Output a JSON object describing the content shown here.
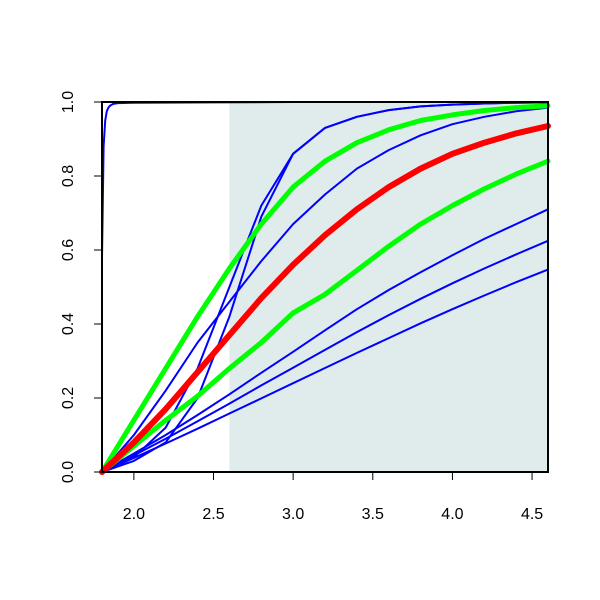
{
  "chart_data": {
    "type": "line",
    "title": "",
    "xlabel": "",
    "ylabel": "",
    "xlim": [
      1.8,
      4.6
    ],
    "ylim": [
      0,
      1
    ],
    "x_ticks": [
      {
        "value": 2.0,
        "label": "2.0"
      },
      {
        "value": 2.5,
        "label": "2.5"
      },
      {
        "value": 3.0,
        "label": "3.0"
      },
      {
        "value": 3.5,
        "label": "3.5"
      },
      {
        "value": 4.0,
        "label": "4.0"
      },
      {
        "value": 4.5,
        "label": "4.5"
      }
    ],
    "y_ticks": [
      {
        "value": 0.0,
        "label": "0.0"
      },
      {
        "value": 0.2,
        "label": "0.2"
      },
      {
        "value": 0.4,
        "label": "0.4"
      },
      {
        "value": 0.6,
        "label": "0.6"
      },
      {
        "value": 0.8,
        "label": "0.8"
      },
      {
        "value": 1.0,
        "label": "1.0"
      }
    ],
    "grid": false,
    "legend": "none",
    "shaded_region": {
      "x_from": 2.6,
      "x_to": 4.6,
      "color": "#dfeceb"
    },
    "series": [
      {
        "color": "#0000ff",
        "width": 2,
        "x": [
          1.8,
          1.81,
          1.82,
          1.83,
          1.84,
          1.85,
          1.87,
          1.9,
          2.0,
          2.5,
          3.0,
          4.6
        ],
        "y": [
          0.58,
          0.88,
          0.95,
          0.975,
          0.985,
          0.99,
          0.995,
          0.997,
          0.998,
          0.999,
          1.0,
          1.0
        ]
      },
      {
        "color": "#0000ff",
        "width": 2,
        "x": [
          1.8,
          2.0,
          2.2,
          2.4,
          2.6,
          2.8,
          3.0,
          3.2,
          3.4,
          3.6,
          3.8,
          4.0,
          4.2,
          4.4,
          4.6
        ],
        "y": [
          0,
          0.03,
          0.08,
          0.2,
          0.42,
          0.69,
          0.86,
          0.93,
          0.96,
          0.978,
          0.988,
          0.993,
          0.996,
          0.998,
          0.999
        ]
      },
      {
        "color": "#0000ff",
        "width": 2,
        "x": [
          1.8,
          2.0,
          2.2,
          2.4,
          2.6,
          2.8,
          3.0,
          3.2,
          3.4,
          3.6,
          3.8,
          4.0,
          4.2,
          4.4,
          4.6
        ],
        "y": [
          0,
          0.04,
          0.12,
          0.28,
          0.5,
          0.72,
          0.86,
          0.93,
          0.96,
          0.978,
          0.988,
          0.993,
          0.996,
          0.998,
          0.999
        ]
      },
      {
        "color": "#0000ff",
        "width": 2,
        "x": [
          1.8,
          2.0,
          2.2,
          2.4,
          2.6,
          2.8,
          3.0,
          3.2,
          3.4,
          3.6,
          3.8,
          4.0,
          4.2,
          4.4,
          4.6
        ],
        "y": [
          0,
          0.1,
          0.22,
          0.35,
          0.46,
          0.57,
          0.67,
          0.75,
          0.82,
          0.87,
          0.91,
          0.94,
          0.96,
          0.975,
          0.985
        ]
      },
      {
        "color": "#0000ff",
        "width": 2,
        "x": [
          1.8,
          2.0,
          2.2,
          2.4,
          2.6,
          2.8,
          3.0,
          3.2,
          3.4,
          3.6,
          3.8,
          4.0,
          4.2,
          4.4,
          4.6
        ],
        "y": [
          0,
          0.05,
          0.1,
          0.154,
          0.21,
          0.268,
          0.325,
          0.383,
          0.44,
          0.492,
          0.54,
          0.586,
          0.63,
          0.67,
          0.71
        ]
      },
      {
        "color": "#0000ff",
        "width": 2,
        "x": [
          1.8,
          2.0,
          2.2,
          2.4,
          2.6,
          2.8,
          3.0,
          3.2,
          3.4,
          3.6,
          3.8,
          4.0,
          4.2,
          4.4,
          4.6
        ],
        "y": [
          0,
          0.045,
          0.09,
          0.137,
          0.185,
          0.234,
          0.282,
          0.33,
          0.378,
          0.424,
          0.468,
          0.51,
          0.55,
          0.588,
          0.625
        ]
      },
      {
        "color": "#0000ff",
        "width": 2,
        "x": [
          1.8,
          2.0,
          2.2,
          2.4,
          2.6,
          2.8,
          3.0,
          3.2,
          3.4,
          3.6,
          3.8,
          4.0,
          4.2,
          4.4,
          4.6
        ],
        "y": [
          0,
          0.038,
          0.077,
          0.117,
          0.158,
          0.199,
          0.24,
          0.281,
          0.322,
          0.362,
          0.402,
          0.44,
          0.477,
          0.513,
          0.547
        ]
      },
      {
        "color": "#00ff00",
        "width": 5,
        "x": [
          1.8,
          2.0,
          2.2,
          2.4,
          2.6,
          2.8,
          3.0,
          3.2,
          3.4,
          3.6,
          3.8,
          4.0,
          4.2,
          4.4,
          4.6
        ],
        "y": [
          0,
          0.14,
          0.28,
          0.42,
          0.55,
          0.67,
          0.77,
          0.84,
          0.89,
          0.925,
          0.95,
          0.965,
          0.977,
          0.985,
          0.99
        ]
      },
      {
        "color": "#00ff00",
        "width": 5,
        "x": [
          1.8,
          2.0,
          2.2,
          2.4,
          2.6,
          2.8,
          3.0,
          3.2,
          3.4,
          3.6,
          3.8,
          4.0,
          4.2,
          4.4,
          4.6
        ],
        "y": [
          0,
          0.07,
          0.14,
          0.205,
          0.28,
          0.35,
          0.43,
          0.48,
          0.545,
          0.61,
          0.67,
          0.72,
          0.765,
          0.805,
          0.84
        ]
      },
      {
        "color": "#ff0000",
        "width": 6,
        "x": [
          1.8,
          2.0,
          2.2,
          2.4,
          2.6,
          2.8,
          3.0,
          3.2,
          3.4,
          3.6,
          3.8,
          4.0,
          4.2,
          4.4,
          4.6
        ],
        "y": [
          0,
          0.08,
          0.17,
          0.27,
          0.37,
          0.47,
          0.56,
          0.64,
          0.71,
          0.77,
          0.82,
          0.86,
          0.89,
          0.915,
          0.935
        ]
      }
    ]
  }
}
